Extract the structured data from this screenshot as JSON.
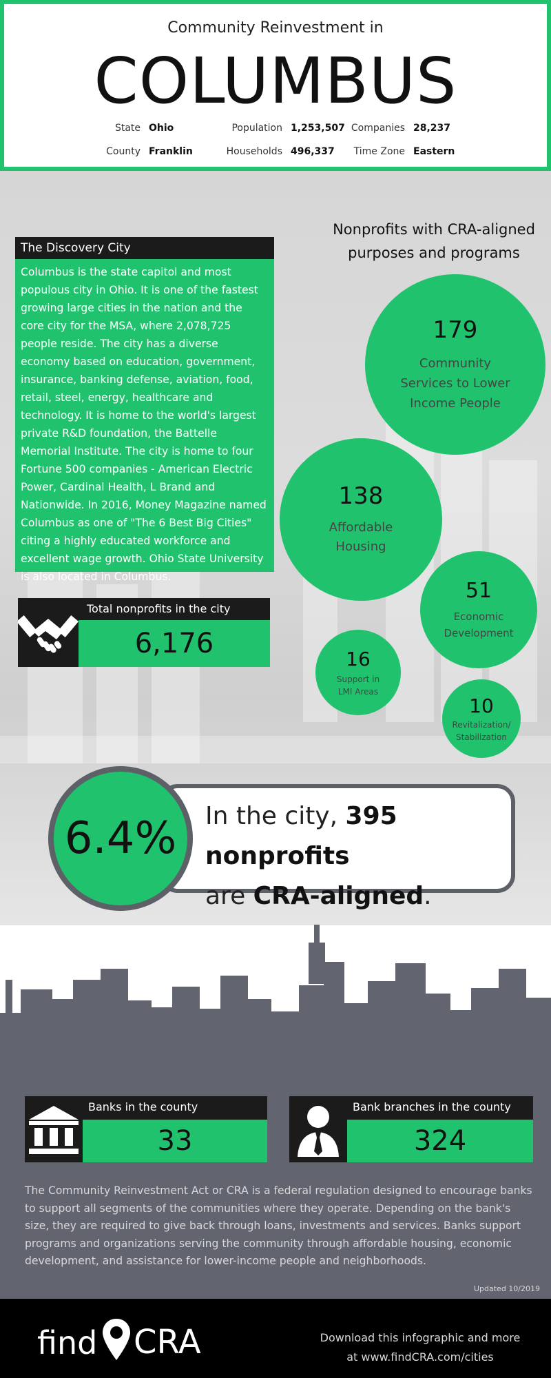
{
  "header": {
    "subtitle": "Community Reinvestment in",
    "city": "COLUMBUS",
    "stats": [
      {
        "label": "State",
        "value": "Ohio"
      },
      {
        "label": "County",
        "value": "Franklin"
      },
      {
        "label": "Population",
        "value": "1,253,507"
      },
      {
        "label": "Households",
        "value": "496,337"
      },
      {
        "label": "Companies",
        "value": "28,237"
      },
      {
        "label": "Time Zone",
        "value": "Eastern"
      }
    ]
  },
  "discovery": {
    "title": "The Discovery City",
    "body": "Columbus is the state capitol and most populous city in Ohio.  It is one of the fastest growing large cities in the nation and the core city for the MSA, where 2,078,725 people reside. The city has a diverse economy based on education, government, insurance, banking defense, aviation, food, retail, steel, energy, healthcare and technology. It is home to the world's largest private R&D foundation, the Battelle Memorial Institute. The city is home to four Fortune 500 companies - American Electric Power, Cardinal Health, L Brand and Nationwide. In 2016, Money Magazine named Columbus as one of \"The 6 Best Big Cities\" citing a highly educated workforce and excellent wage growth.  Ohio State University is also located in Columbus."
  },
  "nonprofits_total": {
    "label": "Total nonprofits in the city",
    "value": "6,176",
    "icon": "handshake-icon"
  },
  "bubbles": {
    "heading_line1": "Nonprofits with CRA-aligned",
    "heading_line2": "purposes and programs",
    "items": [
      {
        "value": "179",
        "label": "Community Services to Lower Income People"
      },
      {
        "value": "138",
        "label": "Affordable Housing"
      },
      {
        "value": "51",
        "label": "Economic Development"
      },
      {
        "value": "16",
        "label": "Support in LMI Areas"
      },
      {
        "value": "10",
        "label": "Revitalization/ Stabilization"
      }
    ]
  },
  "highlight": {
    "percent": "6.4%",
    "text_pre": "In the city, ",
    "text_bold1": "395 nonprofits",
    "text_mid": "are ",
    "text_bold2": "CRA-aligned",
    "text_post": "."
  },
  "banks": {
    "label": "Banks in the county",
    "value": "33",
    "icon": "bank-icon"
  },
  "branches": {
    "label": "Bank branches in the county",
    "value": "324",
    "icon": "person-icon"
  },
  "cra_text": "The Community Reinvestment Act or CRA is a federal regulation designed to encourage banks to support all segments of the communities where they operate. Depending on the bank's size, they are required to give back through loans, investments and services.  Banks support programs and organizations serving the community through affordable housing, economic development, and assistance for lower-income people and neighborhoods.",
  "updated": "Updated 10/2019",
  "footer": {
    "logo_text_left": "find",
    "logo_text_right": "CRA",
    "download_line1": "Download this infographic and more",
    "download_line2": "at www.findCRA.com/cities"
  },
  "colors": {
    "green": "#21c26d",
    "dark": "#1b1b1b",
    "slate": "#62656f"
  }
}
